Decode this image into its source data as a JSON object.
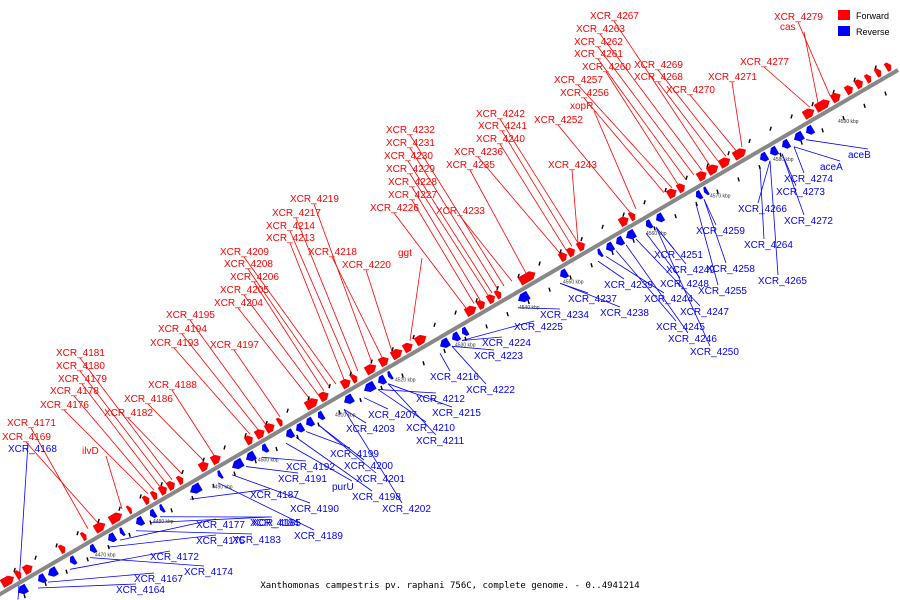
{
  "title": "Xanthomonas campestris pv. raphani 756C, complete genome. - 0..4941214",
  "legend": [
    {
      "label": "Forward",
      "color": "#ff0000"
    },
    {
      "label": "Reverse",
      "color": "#0000ff"
    }
  ],
  "colors": {
    "axis": "#888888",
    "forward": "#ff0000",
    "reverse": "#0000ff",
    "tick": "#000000"
  },
  "axis_ticks": [
    "4470 kbp",
    "4480 kbp",
    "4490 kbp",
    "4500 kbp",
    "4510 kbp",
    "4520 kbp",
    "4530 kbp",
    "4540 kbp",
    "4550 kbp",
    "4560 kbp",
    "4570 kbp",
    "4580 kbp",
    "4590 kbp"
  ],
  "forward_labels": [
    "XCR_4171",
    "XCR_4169",
    "ilvD",
    "XCR_4176",
    "XCR_4178",
    "XCR_4179",
    "XCR_4180",
    "XCR_4181",
    "XCR_4182",
    "XCR_4186",
    "XCR_4188",
    "XCR_4193",
    "XCR_4194",
    "XCR_4195",
    "XCR_4197",
    "XCR_4204",
    "XCR_4205",
    "XCR_4206",
    "XCR_4208",
    "XCR_4209",
    "XCR_4213",
    "XCR_4214",
    "XCR_4217",
    "XCR_4219",
    "XCR_4218",
    "XCR_4220",
    "ggt",
    "XCR_4226",
    "XCR_4227",
    "XCR_4228",
    "XCR_4229",
    "XCR_4230",
    "XCR_4231",
    "XCR_4232",
    "XCR_4233",
    "XCR_4235",
    "XCR_4236",
    "XCR_4240",
    "XCR_4241",
    "XCR_4242",
    "XCR_4243",
    "XCR_4252",
    "xopR",
    "XCR_4256",
    "XCR_4257",
    "XCR_4260",
    "XCR_4261",
    "XCR_4262",
    "XCR_4263",
    "XCR_4267",
    "XCR_4268",
    "XCR_4269",
    "XCR_4270",
    "XCR_4271",
    "XCR_4277",
    "cas",
    "XCR_4279"
  ],
  "reverse_labels": [
    "XCR_4168",
    "XCR_4164",
    "XCR_4167",
    "XCR_4172",
    "XCR_4174",
    "XCR_4175",
    "XCR_4177",
    "XCR_4183",
    "XCR_4184",
    "XCR_4185",
    "XCR_4187",
    "XCR_4189",
    "XCR_4190",
    "XCR_4191",
    "XCR_4192",
    "purU",
    "XCR_4198",
    "XCR_4199",
    "XCR_4200",
    "XCR_4201",
    "XCR_4202",
    "XCR_4203",
    "XCR_4207",
    "XCR_4210",
    "XCR_4211",
    "XCR_4212",
    "XCR_4215",
    "XCR_4216",
    "XCR_4222",
    "XCR_4223",
    "XCR_4224",
    "XCR_4225",
    "XCR_4234",
    "XCR_4237",
    "XCR_4238",
    "XCR_4239",
    "XCR_4244",
    "XCR_4245",
    "XCR_4246",
    "XCR_4247",
    "XCR_4248",
    "XCR_4249",
    "XCR_4250",
    "XCR_4251",
    "XCR_4255",
    "XCR_4258",
    "XCR_4259",
    "XCR_4264",
    "XCR_4265",
    "XCR_4266",
    "XCR_4272",
    "XCR_4273",
    "XCR_4274",
    "aceA",
    "aceB"
  ]
}
